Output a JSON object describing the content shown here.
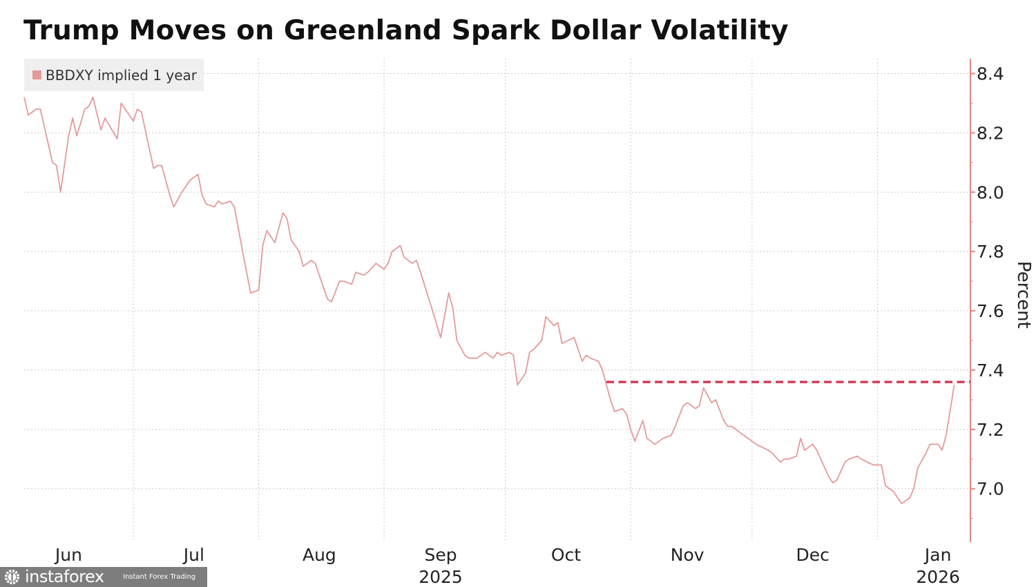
{
  "chart_data": {
    "type": "line",
    "title": "Trump Moves on Greenland Spark Dollar Volatility",
    "ylabel": "Percent",
    "xlabel": "",
    "ylim": [
      6.82,
      8.45
    ],
    "xlim": [
      "2025-06-04",
      "2026-01-24"
    ],
    "yticks": [
      7.0,
      7.2,
      7.4,
      7.6,
      7.8,
      8.0,
      8.2,
      8.4
    ],
    "ytick_labels": [
      "7.0",
      "7.2",
      "7.4",
      "7.6",
      "7.8",
      "8.0",
      "8.2",
      "8.4"
    ],
    "y_axis_side": "right",
    "grid": true,
    "legend": {
      "placement": "top-left",
      "entries": [
        "BBDXY implied 1 year"
      ]
    },
    "xticks": [
      {
        "month": "Jun",
        "year": "",
        "date": "2025-06-15"
      },
      {
        "month": "Jul",
        "year": "",
        "date": "2025-07-16"
      },
      {
        "month": "Aug",
        "year": "",
        "date": "2025-08-16"
      },
      {
        "month": "Sep",
        "year": "2025",
        "date": "2025-09-15"
      },
      {
        "month": "Oct",
        "year": "",
        "date": "2025-10-16"
      },
      {
        "month": "Nov",
        "year": "",
        "date": "2025-11-15"
      },
      {
        "month": "Dec",
        "year": "",
        "date": "2025-12-16"
      },
      {
        "month": "Jan",
        "year": "2026",
        "date": "2026-01-16"
      }
    ],
    "month_boundaries": [
      "2025-07-01",
      "2025-08-01",
      "2025-09-01",
      "2025-10-01",
      "2025-11-01",
      "2025-12-01",
      "2026-01-01"
    ],
    "series": [
      {
        "name": "BBDXY implied 1 year",
        "color": "#e39a9a",
        "points": [
          [
            "2025-06-04",
            8.32
          ],
          [
            "2025-06-05",
            8.26
          ],
          [
            "2025-06-07",
            8.28
          ],
          [
            "2025-06-08",
            8.28
          ],
          [
            "2025-06-11",
            8.1
          ],
          [
            "2025-06-12",
            8.09
          ],
          [
            "2025-06-13",
            8.0
          ],
          [
            "2025-06-15",
            8.19
          ],
          [
            "2025-06-16",
            8.25
          ],
          [
            "2025-06-17",
            8.19
          ],
          [
            "2025-06-19",
            8.28
          ],
          [
            "2025-06-20",
            8.29
          ],
          [
            "2025-06-21",
            8.32
          ],
          [
            "2025-06-23",
            8.21
          ],
          [
            "2025-06-24",
            8.25
          ],
          [
            "2025-06-27",
            8.18
          ],
          [
            "2025-06-28",
            8.3
          ],
          [
            "2025-07-01",
            8.24
          ],
          [
            "2025-07-02",
            8.28
          ],
          [
            "2025-07-03",
            8.27
          ],
          [
            "2025-07-06",
            8.08
          ],
          [
            "2025-07-07",
            8.09
          ],
          [
            "2025-07-08",
            8.09
          ],
          [
            "2025-07-10",
            7.99
          ],
          [
            "2025-07-11",
            7.95
          ],
          [
            "2025-07-13",
            8.0
          ],
          [
            "2025-07-14",
            8.02
          ],
          [
            "2025-07-15",
            8.04
          ],
          [
            "2025-07-17",
            8.06
          ],
          [
            "2025-07-18",
            7.99
          ],
          [
            "2025-07-19",
            7.96
          ],
          [
            "2025-07-21",
            7.95
          ],
          [
            "2025-07-22",
            7.97
          ],
          [
            "2025-07-23",
            7.96
          ],
          [
            "2025-07-25",
            7.97
          ],
          [
            "2025-07-26",
            7.95
          ],
          [
            "2025-07-28",
            7.8
          ],
          [
            "2025-07-30",
            7.66
          ],
          [
            "2025-08-01",
            7.67
          ],
          [
            "2025-08-02",
            7.82
          ],
          [
            "2025-08-03",
            7.87
          ],
          [
            "2025-08-05",
            7.83
          ],
          [
            "2025-08-07",
            7.93
          ],
          [
            "2025-08-08",
            7.91
          ],
          [
            "2025-08-09",
            7.84
          ],
          [
            "2025-08-11",
            7.8
          ],
          [
            "2025-08-12",
            7.75
          ],
          [
            "2025-08-14",
            7.77
          ],
          [
            "2025-08-15",
            7.76
          ],
          [
            "2025-08-18",
            7.64
          ],
          [
            "2025-08-19",
            7.63
          ],
          [
            "2025-08-21",
            7.7
          ],
          [
            "2025-08-22",
            7.7
          ],
          [
            "2025-08-24",
            7.69
          ],
          [
            "2025-08-25",
            7.73
          ],
          [
            "2025-08-27",
            7.72
          ],
          [
            "2025-08-28",
            7.73
          ],
          [
            "2025-08-30",
            7.76
          ],
          [
            "2025-09-01",
            7.74
          ],
          [
            "2025-09-02",
            7.76
          ],
          [
            "2025-09-03",
            7.8
          ],
          [
            "2025-09-05",
            7.82
          ],
          [
            "2025-09-06",
            7.78
          ],
          [
            "2025-09-08",
            7.76
          ],
          [
            "2025-09-09",
            7.77
          ],
          [
            "2025-09-10",
            7.73
          ],
          [
            "2025-09-13",
            7.6
          ],
          [
            "2025-09-15",
            7.51
          ],
          [
            "2025-09-17",
            7.66
          ],
          [
            "2025-09-18",
            7.61
          ],
          [
            "2025-09-19",
            7.5
          ],
          [
            "2025-09-21",
            7.45
          ],
          [
            "2025-09-22",
            7.44
          ],
          [
            "2025-09-24",
            7.44
          ],
          [
            "2025-09-26",
            7.46
          ],
          [
            "2025-09-28",
            7.44
          ],
          [
            "2025-09-29",
            7.46
          ],
          [
            "2025-09-30",
            7.45
          ],
          [
            "2025-10-02",
            7.46
          ],
          [
            "2025-10-03",
            7.45
          ],
          [
            "2025-10-04",
            7.35
          ],
          [
            "2025-10-06",
            7.39
          ],
          [
            "2025-10-07",
            7.46
          ],
          [
            "2025-10-08",
            7.47
          ],
          [
            "2025-10-10",
            7.5
          ],
          [
            "2025-10-11",
            7.58
          ],
          [
            "2025-10-13",
            7.55
          ],
          [
            "2025-10-14",
            7.56
          ],
          [
            "2025-10-15",
            7.49
          ],
          [
            "2025-10-18",
            7.51
          ],
          [
            "2025-10-20",
            7.43
          ],
          [
            "2025-10-21",
            7.45
          ],
          [
            "2025-10-22",
            7.44
          ],
          [
            "2025-10-24",
            7.43
          ],
          [
            "2025-10-25",
            7.4
          ],
          [
            "2025-10-27",
            7.3
          ],
          [
            "2025-10-28",
            7.26
          ],
          [
            "2025-10-30",
            7.27
          ],
          [
            "2025-10-31",
            7.25
          ],
          [
            "2025-11-01",
            7.2
          ],
          [
            "2025-11-02",
            7.16
          ],
          [
            "2025-11-04",
            7.23
          ],
          [
            "2025-11-05",
            7.17
          ],
          [
            "2025-11-07",
            7.15
          ],
          [
            "2025-11-09",
            7.17
          ],
          [
            "2025-11-11",
            7.18
          ],
          [
            "2025-11-12",
            7.21
          ],
          [
            "2025-11-14",
            7.28
          ],
          [
            "2025-11-15",
            7.29
          ],
          [
            "2025-11-17",
            7.27
          ],
          [
            "2025-11-18",
            7.28
          ],
          [
            "2025-11-19",
            7.34
          ],
          [
            "2025-11-21",
            7.29
          ],
          [
            "2025-11-22",
            7.3
          ],
          [
            "2025-11-24",
            7.23
          ],
          [
            "2025-11-25",
            7.21
          ],
          [
            "2025-11-26",
            7.21
          ],
          [
            "2025-11-28",
            7.19
          ],
          [
            "2025-12-01",
            7.16
          ],
          [
            "2025-12-02",
            7.15
          ],
          [
            "2025-12-05",
            7.13
          ],
          [
            "2025-12-06",
            7.12
          ],
          [
            "2025-12-08",
            7.09
          ],
          [
            "2025-12-09",
            7.1
          ],
          [
            "2025-12-10",
            7.1
          ],
          [
            "2025-12-12",
            7.11
          ],
          [
            "2025-12-13",
            7.17
          ],
          [
            "2025-12-14",
            7.13
          ],
          [
            "2025-12-16",
            7.15
          ],
          [
            "2025-12-17",
            7.13
          ],
          [
            "2025-12-20",
            7.04
          ],
          [
            "2025-12-21",
            7.02
          ],
          [
            "2025-12-22",
            7.03
          ],
          [
            "2025-12-24",
            7.09
          ],
          [
            "2025-12-25",
            7.1
          ],
          [
            "2025-12-27",
            7.11
          ],
          [
            "2025-12-28",
            7.1
          ],
          [
            "2025-12-31",
            7.08
          ],
          [
            "2026-01-01",
            7.08
          ],
          [
            "2026-01-02",
            7.08
          ],
          [
            "2026-01-03",
            7.01
          ],
          [
            "2026-01-05",
            6.99
          ],
          [
            "2026-01-06",
            6.97
          ],
          [
            "2026-01-07",
            6.95
          ],
          [
            "2026-01-09",
            6.97
          ],
          [
            "2026-01-10",
            7.0
          ],
          [
            "2026-01-11",
            7.07
          ],
          [
            "2026-01-13",
            7.12
          ],
          [
            "2026-01-14",
            7.15
          ],
          [
            "2026-01-16",
            7.15
          ],
          [
            "2026-01-17",
            7.13
          ],
          [
            "2026-01-18",
            7.18
          ],
          [
            "2026-01-20",
            7.35
          ]
        ]
      }
    ],
    "reference_line": {
      "value": 7.36,
      "start": "2025-10-26",
      "style": "dashed",
      "color": "#d23a55"
    },
    "axis_color": "#e08585"
  },
  "watermark": {
    "name": "instaforex",
    "tagline": "Instant Forex Trading"
  }
}
